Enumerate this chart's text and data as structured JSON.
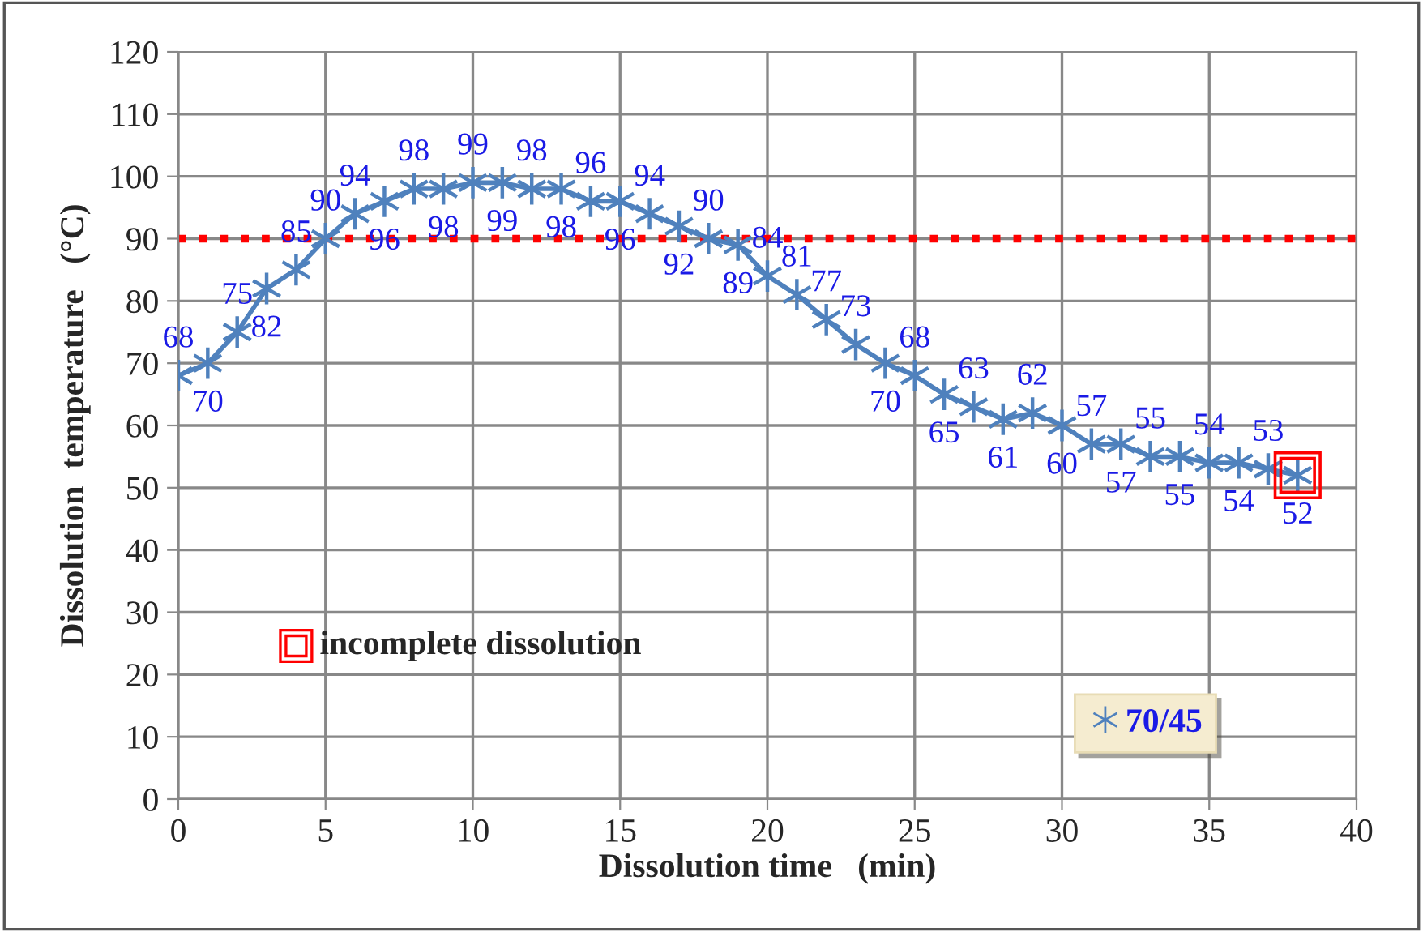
{
  "chart_data": {
    "type": "line",
    "xlabel": "Dissolution time   (min)",
    "ylabel": "Dissolution  temperature   (°C)",
    "x": [
      0,
      1,
      2,
      3,
      4,
      5,
      6,
      7,
      8,
      9,
      10,
      11,
      12,
      13,
      14,
      15,
      16,
      17,
      18,
      19,
      20,
      21,
      22,
      23,
      24,
      25,
      26,
      27,
      28,
      29,
      30,
      31,
      32,
      33,
      34,
      35,
      36,
      37,
      38
    ],
    "series": [
      {
        "name": "70/45",
        "color": "#4f81bd",
        "values": [
          68,
          70,
          75,
          82,
          85,
          90,
          94,
          96,
          98,
          98,
          99,
          99,
          98,
          98,
          96,
          96,
          94,
          92,
          90,
          89,
          84,
          81,
          77,
          73,
          70,
          68,
          65,
          63,
          61,
          62,
          60,
          57,
          57,
          55,
          55,
          54,
          54,
          53,
          52
        ]
      }
    ],
    "xlim": [
      0,
      40
    ],
    "xticks": [
      0,
      5,
      10,
      15,
      20,
      25,
      30,
      35,
      40
    ],
    "ylim": [
      0,
      120
    ],
    "yticks": [
      0,
      10,
      20,
      30,
      40,
      50,
      60,
      70,
      80,
      90,
      100,
      110,
      120
    ],
    "ref_lines": [
      {
        "axis": "y",
        "value": 90,
        "color": "#ff0000",
        "line_style": "dotted"
      }
    ],
    "annotations": [
      "incomplete dissolution"
    ],
    "data_labels": true,
    "grid": true,
    "legend": "bottom right",
    "marker": "cross",
    "line_style": "solid"
  }
}
